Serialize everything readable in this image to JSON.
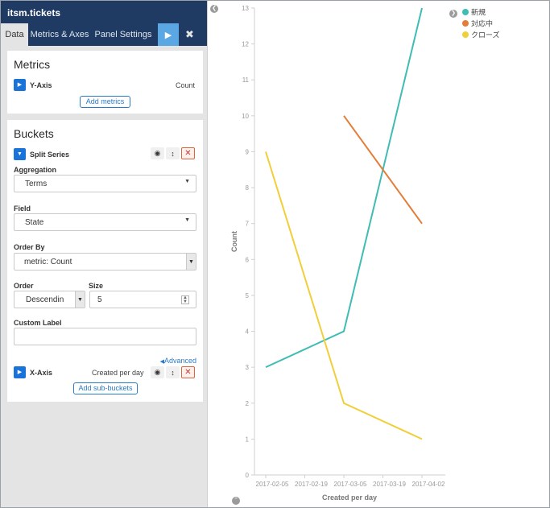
{
  "sidebar": {
    "title": "itsm.tickets",
    "tabs": [
      {
        "label": "Data"
      },
      {
        "label": "Metrics & Axes"
      },
      {
        "label": "Panel Settings"
      }
    ],
    "apply_icon": "play-icon",
    "discard_icon": "close-icon"
  },
  "metrics": {
    "title": "Metrics",
    "y_axis_label": "Y-Axis",
    "y_axis_value": "Count",
    "add_button": "Add metrics"
  },
  "buckets": {
    "title": "Buckets",
    "split_series_label": "Split Series",
    "aggregation_label": "Aggregation",
    "aggregation_value": "Terms",
    "field_label": "Field",
    "field_value": "State",
    "order_by_label": "Order By",
    "order_by_value": "metric: Count",
    "order_label": "Order",
    "order_value": "Descendin",
    "size_label": "Size",
    "size_value": "5",
    "custom_label_label": "Custom Label",
    "custom_label_value": "",
    "advanced_link": "Advanced",
    "x_axis_label": "X-Axis",
    "x_axis_value": "Created per day",
    "add_sub_button": "Add sub-buckets"
  },
  "chart_data": {
    "type": "line",
    "xlabel": "Created per day",
    "ylabel": "Count",
    "x": [
      "2017-02-05",
      "2017-02-19",
      "2017-03-05",
      "2017-03-19",
      "2017-04-02"
    ],
    "ylim": [
      0,
      13
    ],
    "yticks": [
      0,
      1,
      2,
      3,
      4,
      5,
      6,
      7,
      8,
      9,
      10,
      11,
      12,
      13
    ],
    "legend_position": "top-right",
    "series": [
      {
        "name": "新規",
        "color": "#3fbcb3",
        "points": [
          [
            "2017-02-05",
            3
          ],
          [
            "2017-03-05",
            4
          ],
          [
            "2017-04-02",
            13
          ]
        ]
      },
      {
        "name": "対応中",
        "color": "#e37d3a",
        "points": [
          [
            "2017-03-05",
            10
          ],
          [
            "2017-04-02",
            7
          ]
        ]
      },
      {
        "name": "クローズ",
        "color": "#f0cf3a",
        "points": [
          [
            "2017-02-05",
            9
          ],
          [
            "2017-03-05",
            2
          ],
          [
            "2017-04-02",
            1
          ]
        ]
      }
    ]
  }
}
